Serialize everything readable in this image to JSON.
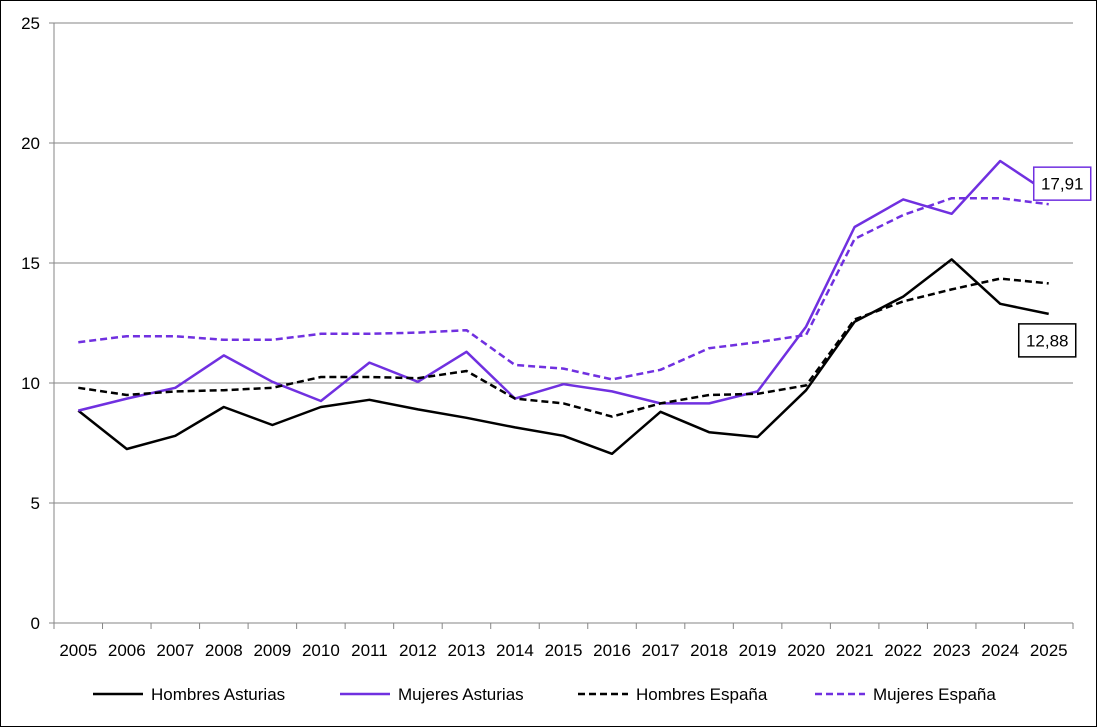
{
  "chart_data": {
    "type": "line",
    "title": "",
    "xlabel": "",
    "ylabel": "",
    "ylim": [
      0,
      25
    ],
    "yticks": [
      0,
      5,
      10,
      15,
      20,
      25
    ],
    "grid": "horizontal",
    "legend_position": "bottom",
    "categories": [
      "2005",
      "2006",
      "2007",
      "2008",
      "2009",
      "2010",
      "2011",
      "2012",
      "2013",
      "2014",
      "2015",
      "2016",
      "2017",
      "2018",
      "2019",
      "2020",
      "2021",
      "2022",
      "2023",
      "2024",
      "2025"
    ],
    "series": [
      {
        "name": "Hombres Asturias",
        "color": "#000000",
        "dash": "solid",
        "values": [
          8.85,
          7.25,
          7.8,
          9.0,
          8.25,
          9.0,
          9.3,
          8.9,
          8.55,
          8.15,
          7.8,
          7.05,
          8.8,
          7.95,
          7.75,
          9.7,
          12.55,
          13.6,
          15.15,
          13.3,
          12.88
        ]
      },
      {
        "name": "Mujeres Asturias",
        "color": "#7030e0",
        "dash": "solid",
        "values": [
          8.85,
          9.35,
          9.8,
          11.15,
          10.05,
          9.25,
          10.85,
          10.05,
          11.3,
          9.35,
          9.95,
          9.65,
          9.15,
          9.15,
          9.65,
          12.35,
          16.5,
          17.65,
          17.05,
          19.25,
          17.91
        ]
      },
      {
        "name": "Hombres España",
        "color": "#000000",
        "dash": "dashed",
        "values": [
          9.8,
          9.5,
          9.65,
          9.7,
          9.8,
          10.25,
          10.25,
          10.2,
          10.5,
          9.35,
          9.15,
          8.6,
          9.15,
          9.5,
          9.55,
          9.9,
          12.65,
          13.4,
          13.9,
          14.35,
          14.15
        ]
      },
      {
        "name": "Mujeres España",
        "color": "#7030e0",
        "dash": "dashed",
        "values": [
          11.7,
          11.95,
          11.95,
          11.8,
          11.8,
          12.05,
          12.05,
          12.1,
          12.2,
          10.75,
          10.6,
          10.15,
          10.55,
          11.45,
          11.7,
          12.0,
          16.0,
          17.0,
          17.7,
          17.7,
          17.45
        ]
      }
    ],
    "annotations": [
      {
        "text": "17,91",
        "series": "Mujeres Asturias",
        "category": "2025",
        "border_color": "#7030e0"
      },
      {
        "text": "12,88",
        "series": "Hombres Asturias",
        "category": "2025",
        "border_color": "#000000"
      }
    ]
  }
}
